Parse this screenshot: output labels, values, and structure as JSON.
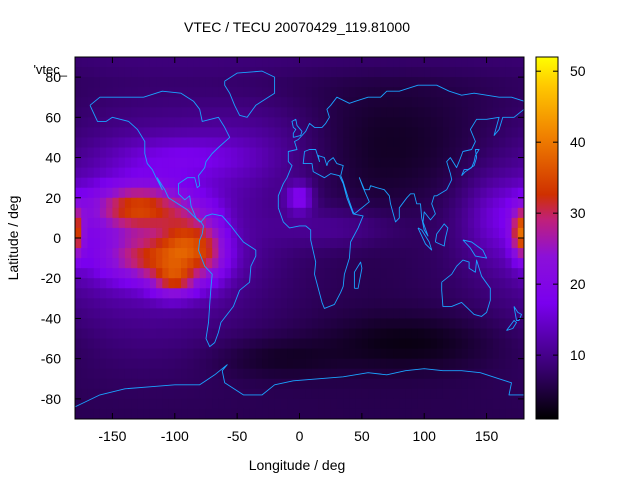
{
  "chart_data": {
    "type": "heatmap",
    "title": "VTEC / TECU 20070429_119.81000",
    "xlabel": "Longitude / deg",
    "ylabel": "Latitude / deg",
    "key_label": "'vtec_",
    "xlim": [
      -180,
      180
    ],
    "ylim": [
      -90,
      90
    ],
    "x_ticks": [
      "-150",
      "-100",
      "-50",
      "0",
      "50",
      "100",
      "150"
    ],
    "x_tick_values": [
      -150,
      -100,
      -50,
      0,
      50,
      100,
      150
    ],
    "y_ticks": [
      "-80",
      "-60",
      "-40",
      "-20",
      "0",
      "20",
      "40",
      "60",
      "80"
    ],
    "y_tick_values": [
      -80,
      -60,
      -40,
      -20,
      0,
      20,
      40,
      60,
      80
    ],
    "colorbar": {
      "range": [
        1,
        52
      ],
      "ticks": [
        "10",
        "20",
        "30",
        "40",
        "50"
      ],
      "tick_values": [
        10,
        20,
        30,
        40,
        50
      ],
      "palette": "black-purple-red-orange-yellow"
    },
    "grid_resolution_deg": [
      5,
      5
    ],
    "vtec_features": [
      {
        "region": "Pacific / Americas equatorial maximum",
        "lon_range": [
          -180,
          -60
        ],
        "lat_range": [
          -30,
          25
        ],
        "vtec": 38
      },
      {
        "region": "Peak near South America",
        "lon": -90,
        "lat": 2,
        "vtec": 40
      },
      {
        "region": "Northern anomaly crest Pacific",
        "lon": -130,
        "lat": 18,
        "vtec": 42
      },
      {
        "region": "Southern anomaly crest",
        "lon": -95,
        "lat": -22,
        "vtec": 41
      },
      {
        "region": "North Africa spot",
        "lon": 0,
        "lat": 20,
        "vtec": 26
      },
      {
        "region": "Western Pacific edge",
        "lon": 178,
        "lat": 2,
        "vtec": 30
      },
      {
        "region": "Night-side minimum Southern Ocean",
        "lon": 90,
        "lat": -55,
        "vtec": 2
      }
    ],
    "grid": false
  }
}
